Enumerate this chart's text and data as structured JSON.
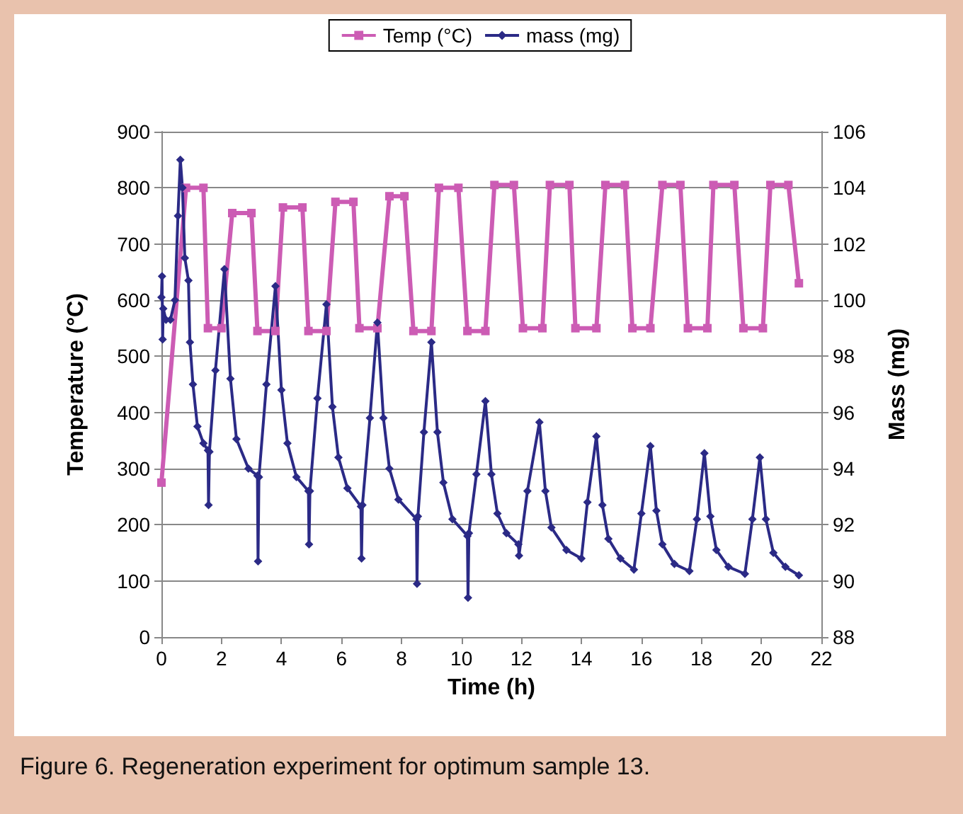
{
  "chart_data": {
    "type": "line",
    "xlabel": "Time (h)",
    "ylabel": "Temperature (°C)",
    "y2label": "Mass (mg)",
    "xlim": [
      0,
      22
    ],
    "xticks": [
      0,
      2,
      4,
      6,
      8,
      10,
      12,
      14,
      16,
      18,
      20,
      22
    ],
    "ylim": [
      0,
      900
    ],
    "yticks": [
      0,
      100,
      200,
      300,
      400,
      500,
      600,
      700,
      800,
      900
    ],
    "y2lim": [
      88,
      106
    ],
    "y2ticks": [
      88,
      90,
      92,
      94,
      96,
      98,
      100,
      102,
      104,
      106
    ],
    "grid": "y",
    "legend": "top",
    "annotations": [
      "Figure 6.  Regeneration experiment for optimum sample 13."
    ],
    "series": [
      {
        "name": "Temp (°C)",
        "color": "#cc5cb4",
        "marker": "square",
        "x": [
          0,
          0.82,
          1.4,
          1.55,
          2.0,
          2.36,
          3.0,
          3.2,
          3.8,
          4.05,
          4.7,
          4.9,
          5.5,
          5.8,
          6.4,
          6.6,
          7.2,
          7.6,
          8.1,
          8.4,
          9.0,
          9.25,
          9.9,
          10.2,
          10.8,
          11.1,
          11.75,
          12.05,
          12.7,
          12.95,
          13.6,
          13.8,
          14.5,
          14.8,
          15.45,
          15.7,
          16.3,
          16.7,
          17.3,
          17.55,
          18.2,
          18.4,
          19.1,
          19.4,
          20.05,
          20.3,
          20.9,
          21.25
        ],
        "values": [
          275,
          800,
          800,
          550,
          550,
          755,
          755,
          545,
          545,
          765,
          765,
          545,
          545,
          775,
          775,
          550,
          550,
          785,
          785,
          545,
          545,
          800,
          800,
          545,
          545,
          805,
          805,
          550,
          550,
          805,
          805,
          550,
          550,
          805,
          805,
          550,
          550,
          805,
          805,
          550,
          550,
          805,
          805,
          550,
          550,
          805,
          805,
          630
        ]
      },
      {
        "name": "mass (mg)",
        "color": "#2b2a86",
        "marker": "diamond",
        "axis": "y2",
        "x": [
          0,
          0.02,
          0.04,
          0.06,
          0.15,
          0.3,
          0.45,
          0.55,
          0.63,
          0.7,
          0.78,
          0.9,
          0.95,
          1.05,
          1.2,
          1.4,
          1.55,
          1.57,
          1.6,
          1.8,
          2.1,
          2.3,
          2.5,
          2.9,
          3.2,
          3.22,
          3.25,
          3.5,
          3.8,
          4.0,
          4.2,
          4.5,
          4.9,
          4.92,
          4.95,
          5.2,
          5.5,
          5.7,
          5.9,
          6.2,
          6.65,
          6.67,
          6.7,
          6.95,
          7.2,
          7.4,
          7.6,
          7.9,
          8.5,
          8.52,
          8.55,
          8.75,
          9.0,
          9.2,
          9.4,
          9.7,
          10.2,
          10.22,
          10.25,
          10.5,
          10.8,
          11.0,
          11.2,
          11.5,
          11.9,
          11.92,
          12.2,
          12.6,
          12.8,
          13.0,
          13.5,
          14.0,
          14.2,
          14.5,
          14.7,
          14.9,
          15.3,
          15.75,
          16.0,
          16.3,
          16.5,
          16.7,
          17.1,
          17.6,
          17.85,
          18.1,
          18.3,
          18.5,
          18.9,
          19.45,
          19.7,
          19.95,
          20.15,
          20.4,
          20.8,
          21.25
        ],
        "values": [
          100.1,
          100.85,
          98.6,
          99.7,
          99.3,
          99.3,
          100,
          103,
          105.0,
          104,
          101.5,
          100.7,
          98.5,
          97,
          95.5,
          94.9,
          94.65,
          92.7,
          94.6,
          97.5,
          101.1,
          97.2,
          95.05,
          94.0,
          93.75,
          90.7,
          93.7,
          97,
          100.5,
          96.8,
          94.9,
          93.7,
          93.2,
          91.3,
          93.2,
          96.5,
          99.85,
          96.2,
          94.4,
          93.3,
          92.65,
          90.8,
          92.7,
          95.8,
          99.2,
          95.8,
          94,
          92.9,
          92.2,
          89.9,
          92.3,
          95.3,
          98.5,
          95.3,
          93.5,
          92.2,
          91.6,
          89.4,
          91.7,
          93.8,
          96.4,
          93.8,
          92.4,
          91.7,
          91.3,
          90.9,
          93.2,
          95.65,
          93.2,
          91.9,
          91.1,
          90.8,
          92.8,
          95.15,
          92.7,
          91.5,
          90.8,
          90.4,
          92.4,
          94.8,
          92.5,
          91.3,
          90.6,
          90.35,
          92.2,
          94.55,
          92.3,
          91.1,
          90.5,
          90.25,
          92.2,
          94.4,
          92.2,
          91.0,
          90.5,
          90.2
        ]
      }
    ]
  }
}
